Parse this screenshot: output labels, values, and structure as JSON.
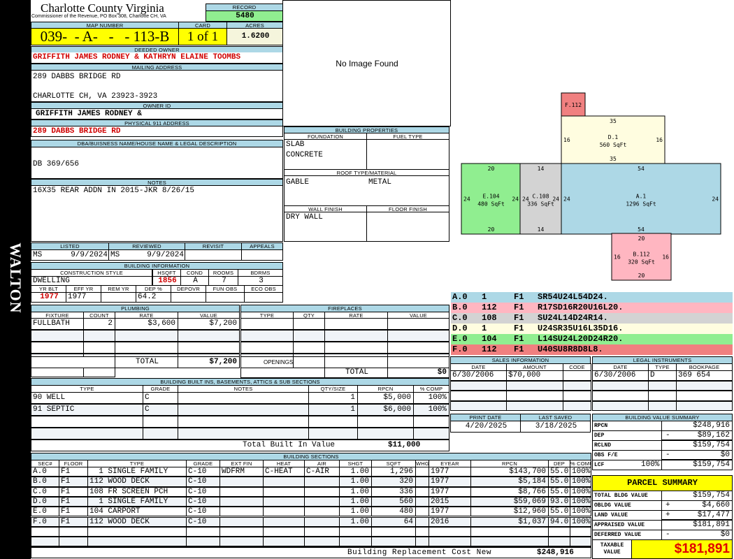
{
  "side_label": "WALTON",
  "header": {
    "title": "Charlotte County Virginia",
    "subtitle": "Commissioner of the Revenue, PO Box 308, Charlotte CH, VA",
    "record_label": "RECORD",
    "record": "5480",
    "map_label": "MAP NUMBER",
    "map_number": "039-  - A-   -   - 113-B",
    "card_label": "CARD",
    "card": "1 of 1",
    "acres_label": "ACRES",
    "acres": "1.6200"
  },
  "owner": {
    "deeded_label": "DEEDED OWNER",
    "deeded": "GRIFFITH JAMES RODNEY & KATHRYN ELAINE TOOMBS",
    "mailing_label": "MAILING ADDRESS",
    "mail1": "289 DABBS BRIDGE RD",
    "mail2": "CHARLOTTE CH, VA 23923-3923",
    "owner_id_label": "OWNER ID",
    "owner_id": "GRIFFITH JAMES RODNEY &",
    "phys_label": "PHYSICAL 911 ADDRESS",
    "phys": "289 DABBS BRIDGE RD",
    "dba_label": "DBA/BUISNESS NAME/HOUSE NAME & LEGAL DESCRIPTION",
    "dba": "DB 369/656",
    "notes_label": "NOTES",
    "notes": "16X35 REAR ADDN IN 2015-JKR 8/26/15"
  },
  "image": {
    "text": "No Image Found"
  },
  "props": {
    "title": "BUILDING PROPERTIES",
    "foundation_label": "FOUNDATION",
    "foundation1": "SLAB",
    "foundation2": "CONCRETE",
    "fuel_label": "FUEL TYPE",
    "roof_label": "ROOF TYPE/MATERIAL",
    "roof_type": "GABLE",
    "roof_material": "METAL",
    "wall_label": "WALL FINISH",
    "wall": "DRY WALL",
    "floor_label": "FLOOR FINISH"
  },
  "review": {
    "listed_label": "LISTED",
    "listed_by": "MS",
    "listed": "9/9/2024",
    "reviewed_label": "REVIEWED",
    "reviewed_by": "MS",
    "reviewed": "9/9/2024",
    "revisit_label": "REVISIT",
    "appeals_label": "APPEALS"
  },
  "building_info": {
    "title": "BUILDING INFORMATION",
    "style_label": "CONSTRUCTION STYLE",
    "style": "DWELLING",
    "hsqft_label": "HSQFT",
    "hsqft": "1856",
    "cond_label": "COND",
    "cond": "A",
    "rooms_label": "ROOMS",
    "rooms": "7",
    "bdrms_label": "BDRMS",
    "bdrms": "3",
    "yrblt_label": "YR BLT",
    "yrblt": "1977",
    "effyr_label": "EFF YR",
    "effyr": "1977",
    "remyr_label": "REM YR",
    "dep_label": "DEP %",
    "dep": "64.2",
    "depovr_label": "DEPOVR",
    "funobs_label": "FUN OBS",
    "ecoobs_label": "ECO OBS"
  },
  "plumbing": {
    "title": "PLUMBING",
    "columns": [
      "FIXTURE",
      "COUNT",
      "RATE",
      "VALUE"
    ],
    "rows": [
      [
        "FULLBATH",
        "2",
        "$3,600",
        "$7,200"
      ]
    ],
    "total_label": "TOTAL",
    "total": "$7,200"
  },
  "fireplaces": {
    "title": "FIREPLACES",
    "columns": [
      "TYPE",
      "QTY",
      "RATE",
      "VALUE"
    ],
    "openings_label": "OPENINGS",
    "total_label": "TOTAL",
    "total": "$0"
  },
  "builtins": {
    "title": "BUILDING BUILT INS, BASEMENTS, ATTICS & SUB SECTIONS",
    "columns": [
      "TYPE",
      "GRADE",
      "NOTES",
      "QTY/SIZE",
      "RPCN",
      "% COMP"
    ],
    "rows": [
      [
        "90 WELL",
        "C",
        "",
        "1",
        "$5,000",
        "100%"
      ],
      [
        "91 SEPTIC",
        "C",
        "",
        "1",
        "$6,000",
        "100%"
      ]
    ],
    "total_label": "Total Built In Value",
    "total": "$11,000"
  },
  "sections": {
    "title": "BUILDING SECTIONS",
    "columns": [
      "SEC#",
      "FLOOR",
      "TYPE",
      "GRADE",
      "EXT FIN",
      "HEAT",
      "AIR",
      "SHGT",
      "SQFT",
      "WHGT",
      "EYEAR",
      "RPCN",
      "DEP",
      "% COMP"
    ],
    "rows": [
      [
        "A.0",
        "F1",
        "  1 SINGLE FAMILY",
        "C-10",
        "WDFRM",
        "C-HEAT",
        "C-AIR",
        "1.00",
        "1,296",
        "",
        "1977",
        "$143,700",
        "55.0",
        "100%"
      ],
      [
        "B.0",
        "F1",
        "112 WOOD DECK",
        "C-10",
        "",
        "",
        "",
        "1.00",
        "320",
        "",
        "1977",
        "$5,184",
        "55.0",
        "100%"
      ],
      [
        "C.0",
        "F1",
        "108 FR SCREEN PCH",
        "C-10",
        "",
        "",
        "",
        "1.00",
        "336",
        "",
        "1977",
        "$8,766",
        "55.0",
        "100%"
      ],
      [
        "D.0",
        "F1",
        "  1 SINGLE FAMILY",
        "C-10",
        "",
        "",
        "",
        "1.00",
        "560",
        "",
        "2015",
        "$59,069",
        "93.0",
        "100%"
      ],
      [
        "E.0",
        "F1",
        "104 CARPORT",
        "C-10",
        "",
        "",
        "",
        "1.00",
        "480",
        "",
        "1977",
        "$12,960",
        "55.0",
        "100%"
      ],
      [
        "F.0",
        "F1",
        "112 WOOD DECK",
        "C-10",
        "",
        "",
        "",
        "1.00",
        "64",
        "",
        "2016",
        "$1,037",
        "94.0",
        "100%"
      ]
    ],
    "total_label": "Building Replacement Cost New",
    "total": "$248,916"
  },
  "sketch": {
    "labels": [
      {
        "id": "F",
        "name": "F.112",
        "area": "",
        "color": "#f08080"
      },
      {
        "id": "D",
        "name": "D.1",
        "area": "560 SqFt",
        "color": "#fffde0"
      },
      {
        "id": "E",
        "name": "E.104",
        "area": "480 SqFt",
        "color": "#90ee90"
      },
      {
        "id": "C",
        "name": "C.108",
        "area": "336 SqFt",
        "color": "#d3d3d3"
      },
      {
        "id": "A",
        "name": "A.1",
        "area": "1296 SqFt",
        "color": "#add8e6"
      },
      {
        "id": "B",
        "name": "B.112",
        "area": "320 SqFt",
        "color": "#ffb6c1"
      }
    ],
    "dims": {
      "D_top": "35",
      "D_bot": "35",
      "D_l": "16",
      "D_r": "16",
      "E_top": "20",
      "E_bot": "20",
      "E_l": "24",
      "E_r": "24",
      "C_top": "14",
      "C_bot": "14",
      "C_l": "24",
      "C_r": "24",
      "A_top": "54",
      "A_bot": "54",
      "A_l": "24",
      "A_r": "24",
      "B_top": "20",
      "B_bot": "20",
      "B_l": "16",
      "B_r": "16"
    }
  },
  "section_codes": [
    {
      "sec": "A.0",
      "code": "1",
      "floor": "F1",
      "path": "SR54U24L54D24.",
      "color": "#add8e6"
    },
    {
      "sec": "B.0",
      "code": "112",
      "floor": "F1",
      "path": "R17SD16R20U16L20.",
      "color": "#ffb6c1"
    },
    {
      "sec": "C.0",
      "code": "108",
      "floor": "F1",
      "path": "SU24L14D24R14.",
      "color": "#d3d3d3"
    },
    {
      "sec": "D.0",
      "code": "1",
      "floor": "F1",
      "path": "U24SR35U16L35D16.",
      "color": "#fffde0"
    },
    {
      "sec": "E.0",
      "code": "104",
      "floor": "F1",
      "path": "L14SU24L20D24R20.",
      "color": "#90ee90"
    },
    {
      "sec": "F.0",
      "code": "112",
      "floor": "F1",
      "path": "U40SU8R8D8L8.",
      "color": "#f08080"
    }
  ],
  "sales": {
    "title": "SALES INFORMATION",
    "columns": [
      "DATE",
      "AMOUNT",
      "CODE"
    ],
    "rows": [
      [
        "6/30/2006",
        "$70,000",
        ""
      ]
    ]
  },
  "legal": {
    "title": "LEGAL INSTRUMENTS",
    "columns": [
      "DATE",
      "TYPE",
      "BOOKPAGE"
    ],
    "rows": [
      [
        "6/30/2006",
        "D",
        "369 654"
      ]
    ]
  },
  "dates": {
    "print_label": "PRINT DATE",
    "print": "4/20/2025",
    "saved_label": "LAST SAVED",
    "saved": "3/18/2025"
  },
  "value_summary": {
    "title": "BUILDING VALUE SUMMARY",
    "rows": [
      {
        "label": "RPCN",
        "sign": "",
        "value": "$248,916"
      },
      {
        "label": "DEP",
        "sign": "-",
        "value": "$89,162"
      },
      {
        "label": "RCLND",
        "sign": "",
        "value": "$159,754"
      },
      {
        "label": "OBS F/E",
        "sign": "-",
        "value": "$0"
      },
      {
        "label": "LCF",
        "pct": "100%",
        "sign": "",
        "value": "$159,754"
      }
    ]
  },
  "parcel": {
    "title": "PARCEL SUMMARY",
    "rows": [
      {
        "label": "TOTAL BLDG VALUE",
        "sign": "",
        "value": "$159,754"
      },
      {
        "label": "OBLDG VALUE",
        "sign": "+",
        "value": "$4,660"
      },
      {
        "label": "LAND VALUE",
        "sign": "+",
        "value": "$17,477"
      },
      {
        "label": "APPRAISED VALUE",
        "sign": "",
        "value": "$181,891"
      },
      {
        "label": "DEFERRED VALUE",
        "sign": "-",
        "value": "$0"
      }
    ],
    "taxable_label": "TAXABLE VALUE",
    "taxable": "$181,891"
  },
  "colors": {
    "header": "#add8e6",
    "record": "#90ee90",
    "map": "#ffff00",
    "acres": "#f5f5dc",
    "red": "#d00000"
  }
}
